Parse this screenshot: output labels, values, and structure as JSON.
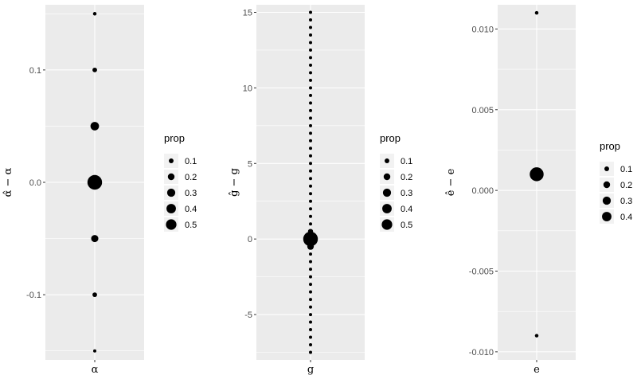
{
  "chart_data": [
    {
      "type": "scatter",
      "ylabel": "α̂ − α",
      "xlabel": "α",
      "x_category": "α",
      "ylim": [
        -0.158,
        0.158
      ],
      "yticks": [
        -0.1,
        0.0,
        0.1
      ],
      "ytick_labels": [
        "-0.1",
        "0.0",
        "0.1"
      ],
      "points": [
        {
          "y": 0.15,
          "prop": 0.03
        },
        {
          "y": 0.1,
          "prop": 0.05
        },
        {
          "y": 0.05,
          "prop": 0.17
        },
        {
          "y": 0.0,
          "prop": 0.5
        },
        {
          "y": -0.05,
          "prop": 0.12
        },
        {
          "y": -0.1,
          "prop": 0.05
        },
        {
          "y": -0.15,
          "prop": 0.02
        }
      ],
      "legend": {
        "title": "prop",
        "labels": [
          "0.1",
          "0.2",
          "0.3",
          "0.4",
          "0.5"
        ],
        "values": [
          0.1,
          0.2,
          0.3,
          0.4,
          0.5
        ]
      }
    },
    {
      "type": "scatter",
      "ylabel": "ĝ − g",
      "xlabel": "g",
      "x_category": "g",
      "ylim": [
        -8.0,
        15.5
      ],
      "yticks": [
        -5,
        0,
        5,
        10,
        15
      ],
      "ytick_labels": [
        "-5",
        "0",
        "5",
        "10",
        "15"
      ],
      "points_generated": {
        "from": -7.5,
        "to": 15,
        "step": 0.5,
        "base_prop": 0.01
      },
      "points": [
        {
          "y": 0.0,
          "prop": 0.5
        },
        {
          "y": -0.5,
          "prop": 0.1
        },
        {
          "y": 0.5,
          "prop": 0.06
        }
      ],
      "legend": {
        "title": "prop",
        "labels": [
          "0.1",
          "0.2",
          "0.3",
          "0.4",
          "0.5"
        ],
        "values": [
          0.1,
          0.2,
          0.3,
          0.4,
          0.5
        ]
      }
    },
    {
      "type": "scatter",
      "ylabel": "ê − e",
      "xlabel": "e",
      "x_category": "e",
      "ylim": [
        -0.0105,
        0.0115
      ],
      "yticks": [
        -0.01,
        -0.005,
        0.0,
        0.005,
        0.01
      ],
      "ytick_labels": [
        "-0.010",
        "-0.005",
        "0.000",
        "0.005",
        "0.010"
      ],
      "points": [
        {
          "y": 0.011,
          "prop": 0.03
        },
        {
          "y": 0.001,
          "prop": 0.45
        },
        {
          "y": -0.009,
          "prop": 0.03
        }
      ],
      "legend": {
        "title": "prop",
        "labels": [
          "0.1",
          "0.2",
          "0.3",
          "0.4"
        ],
        "values": [
          0.1,
          0.2,
          0.3,
          0.4
        ]
      }
    }
  ],
  "colors": {
    "panel": "#ebebeb",
    "grid": "#ffffff",
    "point": "#000000",
    "tick_text": "#4d4d4d"
  }
}
